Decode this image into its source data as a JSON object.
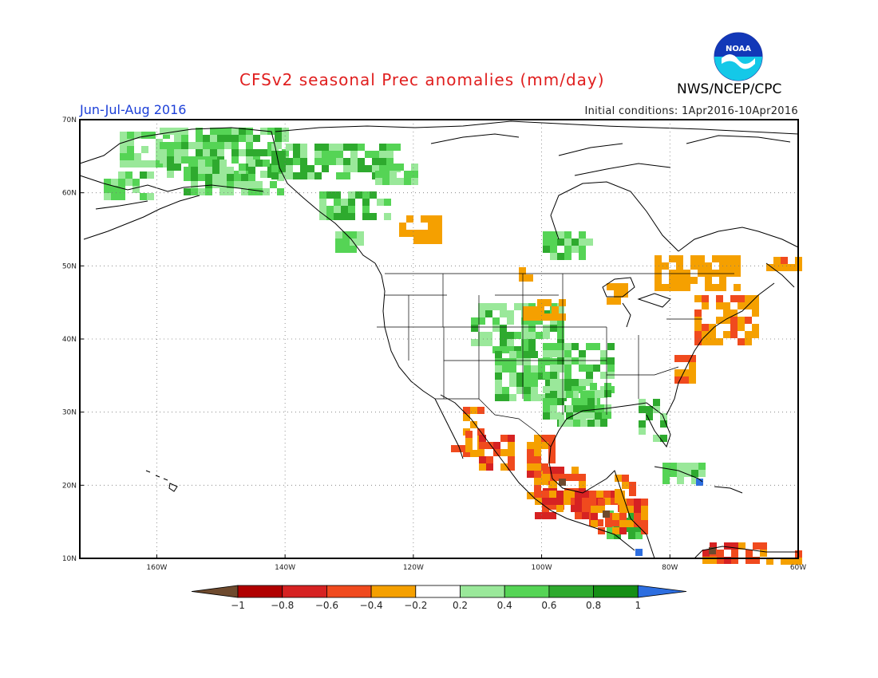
{
  "header": {
    "title": "CFSv2 seasonal Prec anomalies (mm/day)",
    "agency": "NWS/NCEP/CPC",
    "season": "Jun-Jul-Aug 2016",
    "initial_conditions": "Initial conditions: 1Apr2016-10Apr2016",
    "logo_text": "NOAA"
  },
  "map": {
    "lat_ticks": [
      "70N",
      "60N",
      "50N",
      "40N",
      "30N",
      "20N",
      "10N"
    ],
    "lon_ticks": [
      "160W",
      "140W",
      "120W",
      "100W",
      "80W",
      "60W"
    ],
    "lat_range": [
      10,
      70
    ],
    "lon_range": [
      -172,
      -60
    ],
    "grid": "dotted"
  },
  "colorbar": {
    "labels": [
      "-1",
      "-0.8",
      "-0.6",
      "-0.4",
      "-0.2",
      "0.2",
      "0.4",
      "0.6",
      "0.8",
      "1"
    ],
    "colors": {
      "below_-1": "#6e4a2e",
      "-1_-0.8": "#b00000",
      "-0.8_-0.6": "#d62222",
      "-0.6_-0.4": "#f04a1e",
      "-0.4_-0.2": "#f5a000",
      "-0.2_0.2": "#ffffff",
      "0.2_0.4": "#9ae89a",
      "0.4_0.6": "#55d455",
      "0.6_0.8": "#2eaa2e",
      "0.8_1": "#158f15",
      "above_1": "#2d6ee0"
    }
  }
}
